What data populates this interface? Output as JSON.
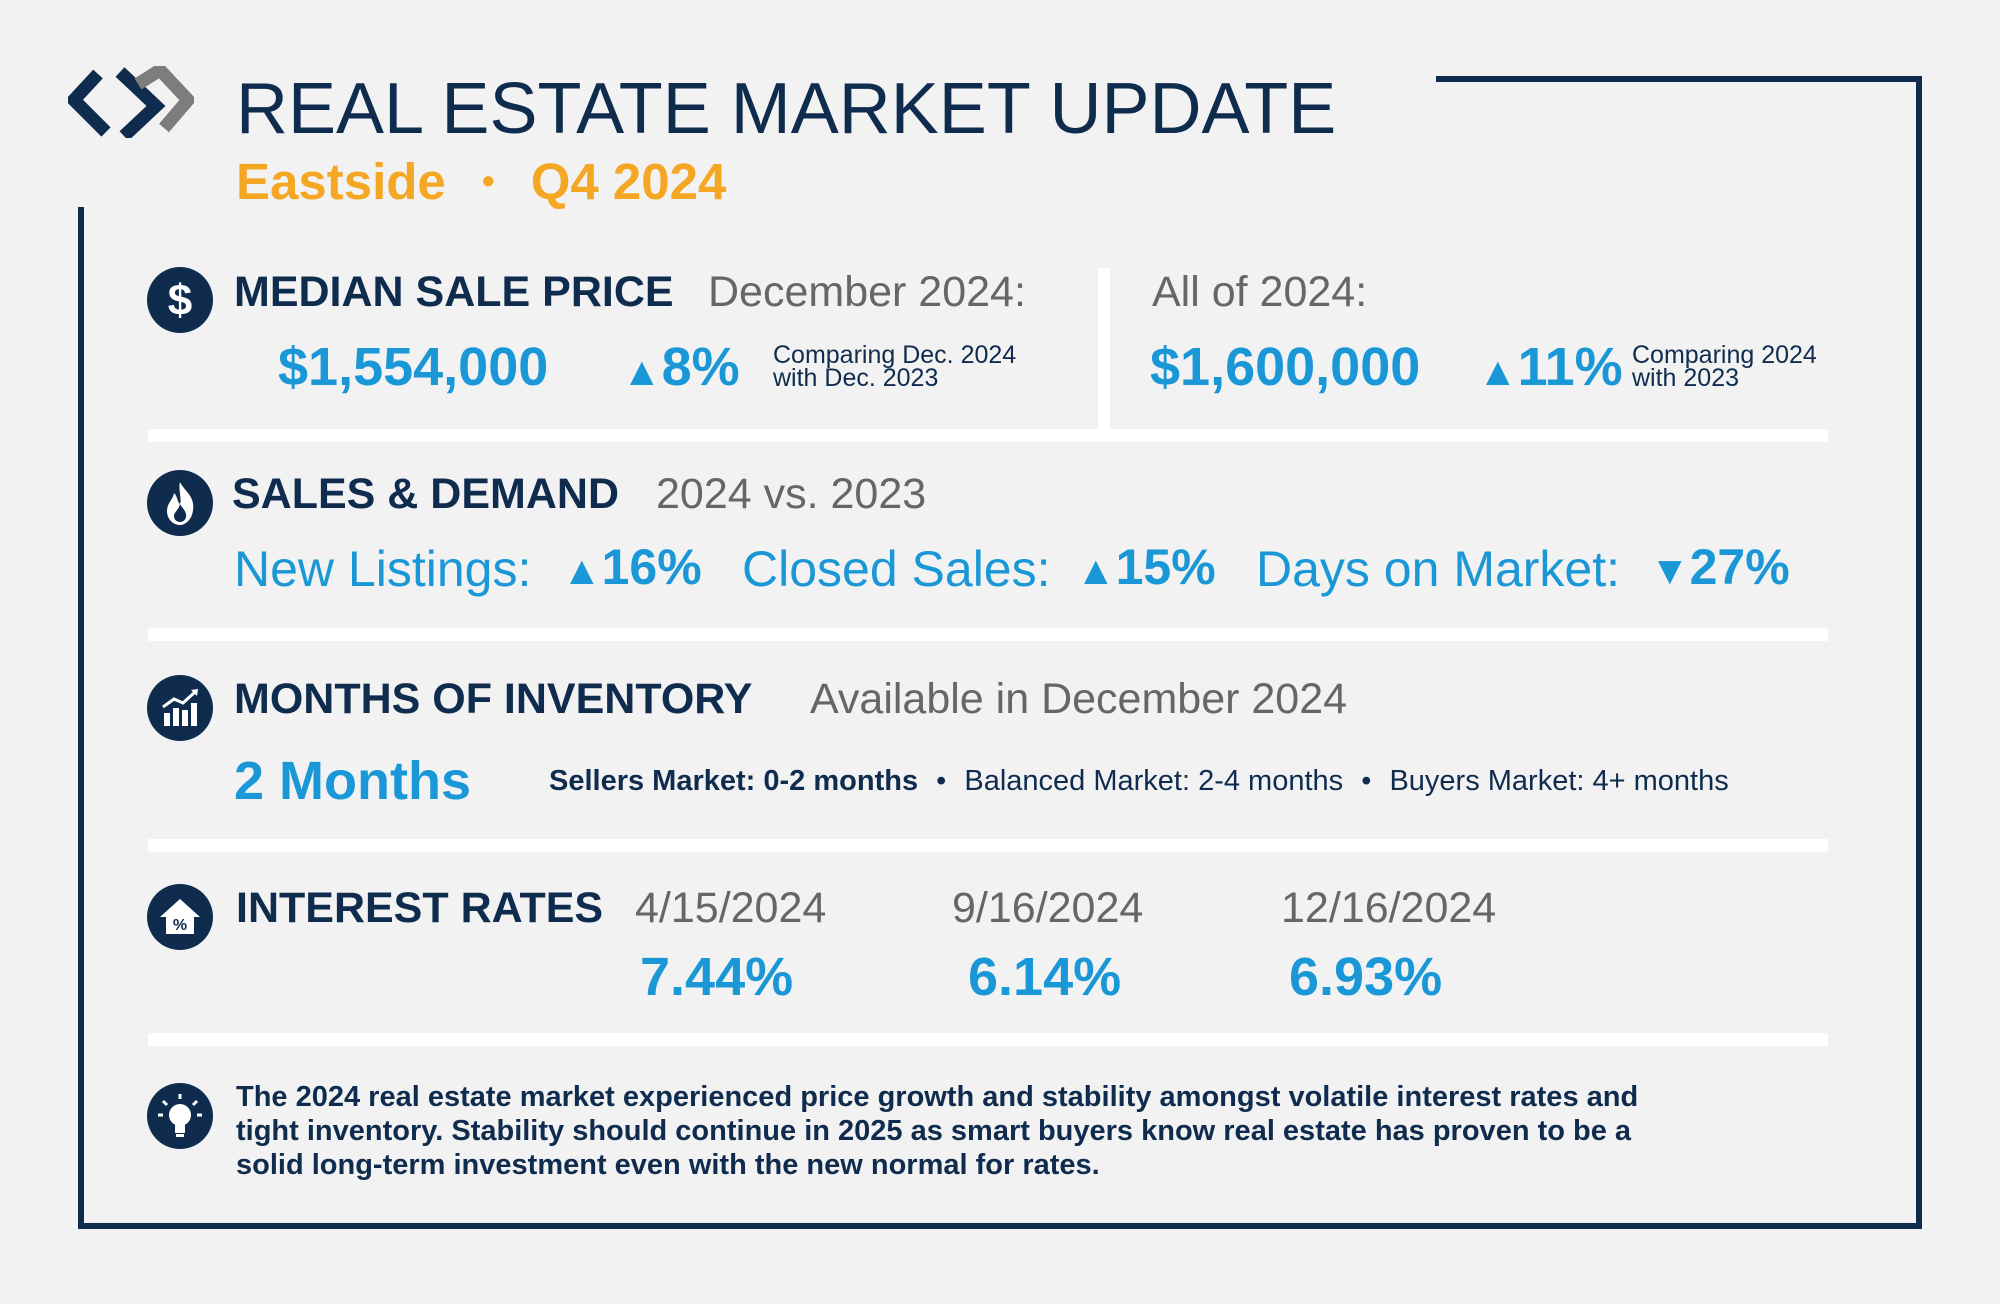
{
  "header": {
    "title": "REAL ESTATE MARKET UPDATE",
    "region": "Eastside",
    "separator": "•",
    "quarter": "Q4 2024"
  },
  "median_sale_price": {
    "heading": "MEDIAN SALE PRICE",
    "december_label": "December 2024:",
    "december_value": "$1,554,000",
    "december_arrow": "▲",
    "december_change": "8%",
    "december_note_line1": "Comparing Dec. 2024",
    "december_note_line2": "with Dec. 2023",
    "year_label": "All of 2024:",
    "year_value": "$1,600,000",
    "year_arrow": "▲",
    "year_change": "11%",
    "year_note_line1": "Comparing 2024",
    "year_note_line2": "with 2023"
  },
  "sales_demand": {
    "heading": "SALES & DEMAND",
    "subheading": "2024 vs. 2023",
    "new_listings_label": "New Listings:",
    "new_listings_arrow": "▲",
    "new_listings_change": "16%",
    "closed_sales_label": "Closed Sales:",
    "closed_sales_arrow": "▲",
    "closed_sales_change": "15%",
    "days_on_market_label": "Days on Market:",
    "days_on_market_arrow": "▼",
    "days_on_market_change": "27%"
  },
  "inventory": {
    "heading": "MONTHS OF INVENTORY",
    "subheading": "Available in December 2024",
    "value": "2 Months",
    "sellers_market": "Sellers Market: 0-2 months",
    "balanced_market": "Balanced Market: 2-4 months",
    "buyers_market": "Buyers Market: 4+ months",
    "bullet": "•"
  },
  "interest_rates": {
    "heading": "INTEREST RATES",
    "rates": [
      {
        "date": "4/15/2024",
        "rate": "7.44%"
      },
      {
        "date": "9/16/2024",
        "rate": "6.14%"
      },
      {
        "date": "12/16/2024",
        "rate": "6.93%"
      }
    ]
  },
  "summary": {
    "line1": "The 2024 real estate market experienced price growth and stability amongst volatile interest rates and",
    "line2": "tight inventory. Stability should continue in 2025 as smart buyers know real estate has proven to be a",
    "line3": "solid long-term investment even with the new normal for rates."
  },
  "icons": [
    "logo-icon",
    "dollar-icon",
    "flame-icon",
    "bar-chart-icon",
    "house-percent-icon",
    "lightbulb-icon"
  ],
  "colors": {
    "navy": "#0f2c4e",
    "blue": "#1a97d6",
    "orange": "#f5a623",
    "gray": "#666666",
    "background": "#f2f2f2"
  }
}
